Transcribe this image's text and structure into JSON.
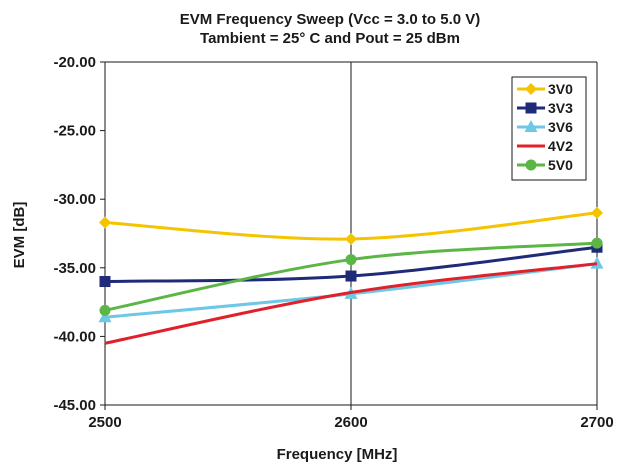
{
  "chart_data": {
    "type": "line",
    "title": "EVM Frequency Sweep (Vcc = 3.0 to 5.0 V)",
    "subtitle": "Tambient = 25° C and Pout = 25 dBm",
    "xlabel": "Frequency [MHz]",
    "ylabel": "EVM [dB]",
    "x": [
      2500,
      2600,
      2700
    ],
    "x_tick_labels": [
      "2500",
      "2600",
      "2700"
    ],
    "xlim": [
      2500,
      2700
    ],
    "ylim": [
      -45,
      -20
    ],
    "y_ticks": [
      -45,
      -40,
      -35,
      -30,
      -25,
      -20
    ],
    "y_tick_labels": [
      "-45.00",
      "-40.00",
      "-35.00",
      "-30.00",
      "-25.00",
      "-20.00"
    ],
    "grid": "vertical",
    "legend_position": "top-right",
    "series": [
      {
        "name": "3V0",
        "values": [
          -31.7,
          -32.9,
          -31.0
        ],
        "color": "#f5c400",
        "marker": "diamond"
      },
      {
        "name": "3V3",
        "values": [
          -36.0,
          -35.6,
          -33.5
        ],
        "color": "#1f2a78",
        "marker": "square"
      },
      {
        "name": "3V6",
        "values": [
          -38.6,
          -36.9,
          -34.7
        ],
        "color": "#6dc8e6",
        "marker": "triangle"
      },
      {
        "name": "4V2",
        "values": [
          -40.5,
          -36.8,
          -34.7
        ],
        "color": "#e0202a",
        "marker": "none"
      },
      {
        "name": "5V0",
        "values": [
          -38.1,
          -34.4,
          -33.2
        ],
        "color": "#5cb645",
        "marker": "circle"
      }
    ]
  }
}
